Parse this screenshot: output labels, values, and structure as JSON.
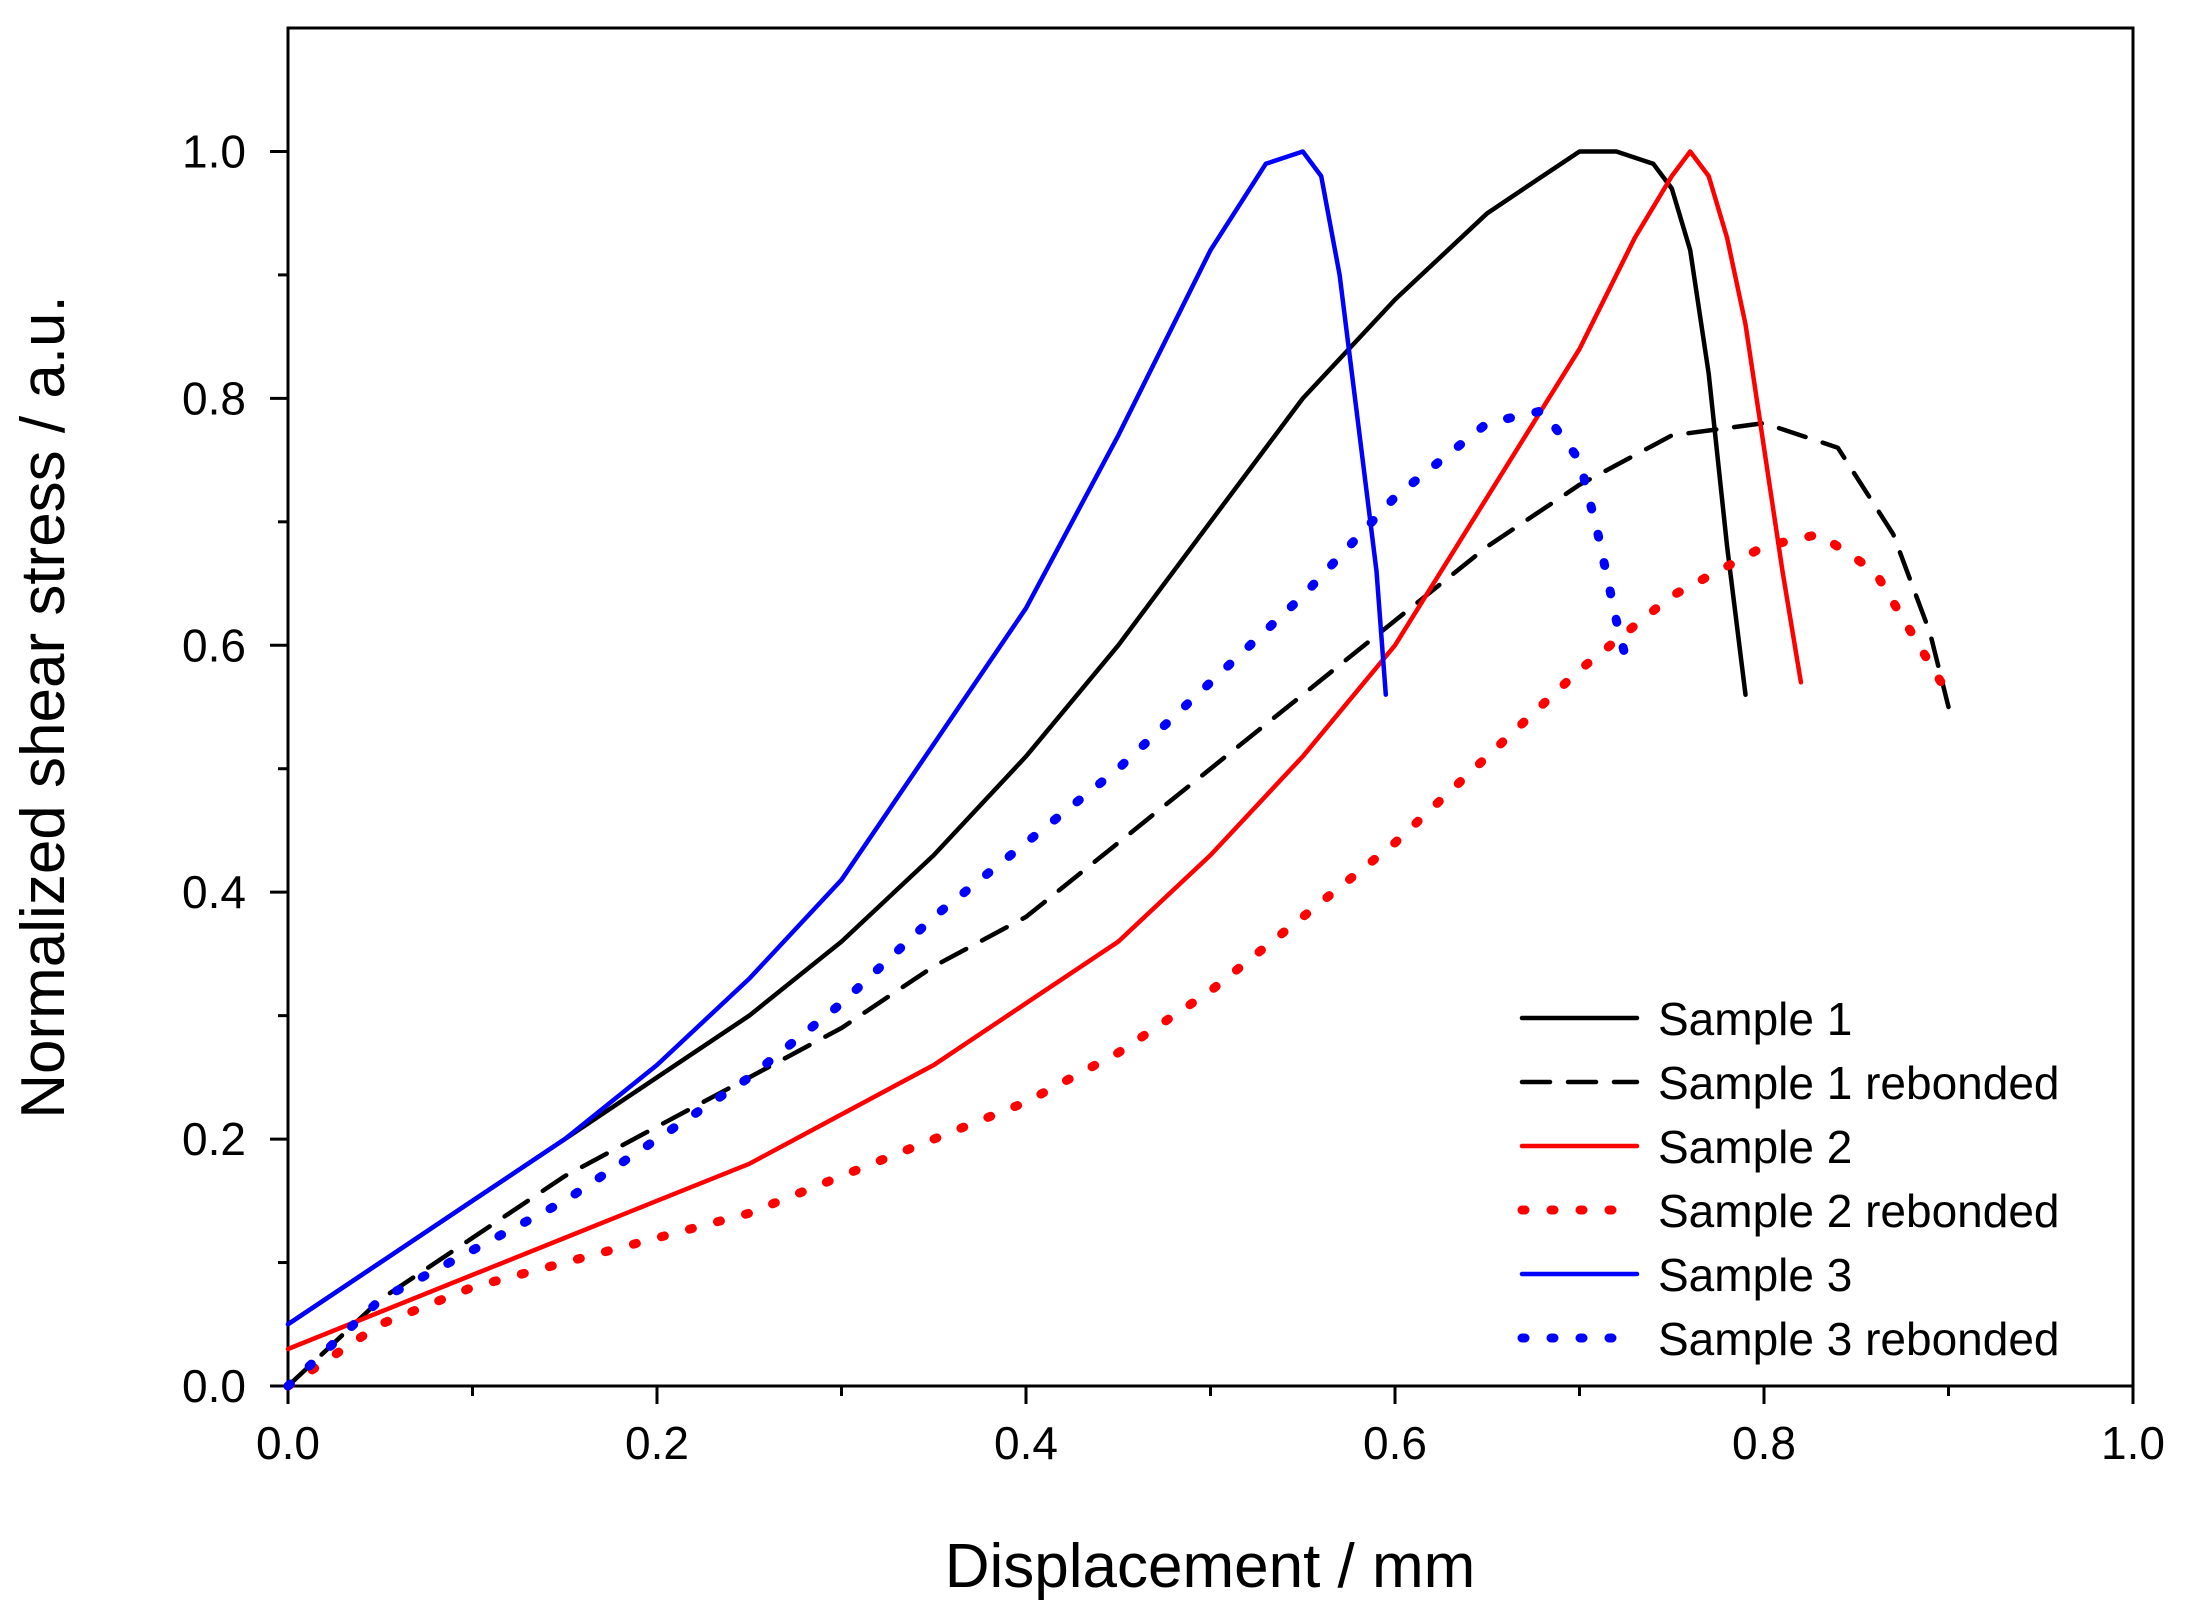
{
  "chart_data": {
    "type": "line",
    "title": "",
    "xlabel": "Displacement / mm",
    "ylabel": "Normalized shear stress / a.u.",
    "xlim": [
      0.0,
      1.0
    ],
    "ylim": [
      0.0,
      1.1
    ],
    "xticks": [
      "0.0",
      "0.2",
      "0.4",
      "0.6",
      "0.8",
      "1.0"
    ],
    "yticks": [
      "0.0",
      "0.2",
      "0.4",
      "0.6",
      "0.8",
      "1.0"
    ],
    "grid": false,
    "legend_position": "bottom-right",
    "series": [
      {
        "name": "Sample 1",
        "color": "#000000",
        "style": "solid",
        "x": [
          0.0,
          0.05,
          0.1,
          0.15,
          0.2,
          0.25,
          0.3,
          0.35,
          0.4,
          0.45,
          0.5,
          0.55,
          0.6,
          0.65,
          0.68,
          0.7,
          0.72,
          0.74,
          0.75,
          0.76,
          0.77,
          0.78,
          0.79
        ],
        "y": [
          0.05,
          0.1,
          0.15,
          0.2,
          0.25,
          0.3,
          0.36,
          0.43,
          0.51,
          0.6,
          0.7,
          0.8,
          0.88,
          0.95,
          0.98,
          1.0,
          1.0,
          0.99,
          0.97,
          0.92,
          0.82,
          0.68,
          0.56
        ]
      },
      {
        "name": "Sample 1 rebonded",
        "color": "#000000",
        "style": "dashed",
        "x": [
          0.0,
          0.05,
          0.1,
          0.15,
          0.2,
          0.25,
          0.3,
          0.35,
          0.4,
          0.45,
          0.5,
          0.55,
          0.6,
          0.65,
          0.7,
          0.75,
          0.8,
          0.84,
          0.87,
          0.89,
          0.9
        ],
        "y": [
          0.0,
          0.07,
          0.12,
          0.17,
          0.21,
          0.25,
          0.29,
          0.34,
          0.38,
          0.44,
          0.5,
          0.56,
          0.62,
          0.68,
          0.73,
          0.77,
          0.78,
          0.76,
          0.69,
          0.61,
          0.55
        ]
      },
      {
        "name": "Sample 2",
        "color": "#ff0000",
        "style": "solid",
        "x": [
          0.0,
          0.05,
          0.1,
          0.15,
          0.2,
          0.25,
          0.3,
          0.35,
          0.4,
          0.45,
          0.5,
          0.55,
          0.6,
          0.65,
          0.7,
          0.73,
          0.75,
          0.76,
          0.77,
          0.78,
          0.79,
          0.8,
          0.81,
          0.82
        ],
        "y": [
          0.03,
          0.06,
          0.09,
          0.12,
          0.15,
          0.18,
          0.22,
          0.26,
          0.31,
          0.36,
          0.43,
          0.51,
          0.6,
          0.72,
          0.84,
          0.93,
          0.98,
          1.0,
          0.98,
          0.93,
          0.86,
          0.76,
          0.66,
          0.57
        ]
      },
      {
        "name": "Sample 2 rebonded",
        "color": "#ff0000",
        "style": "dotted",
        "x": [
          0.0,
          0.05,
          0.1,
          0.15,
          0.2,
          0.25,
          0.3,
          0.35,
          0.4,
          0.45,
          0.5,
          0.55,
          0.6,
          0.65,
          0.7,
          0.75,
          0.8,
          0.83,
          0.86,
          0.88,
          0.9
        ],
        "y": [
          0.0,
          0.05,
          0.08,
          0.1,
          0.12,
          0.14,
          0.17,
          0.2,
          0.23,
          0.27,
          0.32,
          0.38,
          0.44,
          0.51,
          0.58,
          0.64,
          0.68,
          0.69,
          0.66,
          0.61,
          0.56
        ]
      },
      {
        "name": "Sample 3",
        "color": "#0000ff",
        "style": "solid",
        "x": [
          0.0,
          0.05,
          0.1,
          0.15,
          0.2,
          0.25,
          0.3,
          0.35,
          0.4,
          0.45,
          0.5,
          0.53,
          0.55,
          0.56,
          0.57,
          0.58,
          0.59,
          0.595
        ],
        "y": [
          0.05,
          0.1,
          0.15,
          0.2,
          0.26,
          0.33,
          0.41,
          0.52,
          0.63,
          0.77,
          0.92,
          0.99,
          1.0,
          0.98,
          0.9,
          0.78,
          0.66,
          0.56
        ]
      },
      {
        "name": "Sample 3 rebonded",
        "color": "#0000ff",
        "style": "dotted",
        "x": [
          0.0,
          0.05,
          0.1,
          0.15,
          0.2,
          0.25,
          0.3,
          0.35,
          0.4,
          0.45,
          0.5,
          0.55,
          0.6,
          0.65,
          0.68,
          0.7,
          0.71,
          0.72,
          0.725
        ],
        "y": [
          0.0,
          0.07,
          0.11,
          0.15,
          0.2,
          0.25,
          0.31,
          0.38,
          0.44,
          0.5,
          0.57,
          0.64,
          0.72,
          0.78,
          0.79,
          0.75,
          0.69,
          0.62,
          0.59
        ]
      }
    ]
  }
}
